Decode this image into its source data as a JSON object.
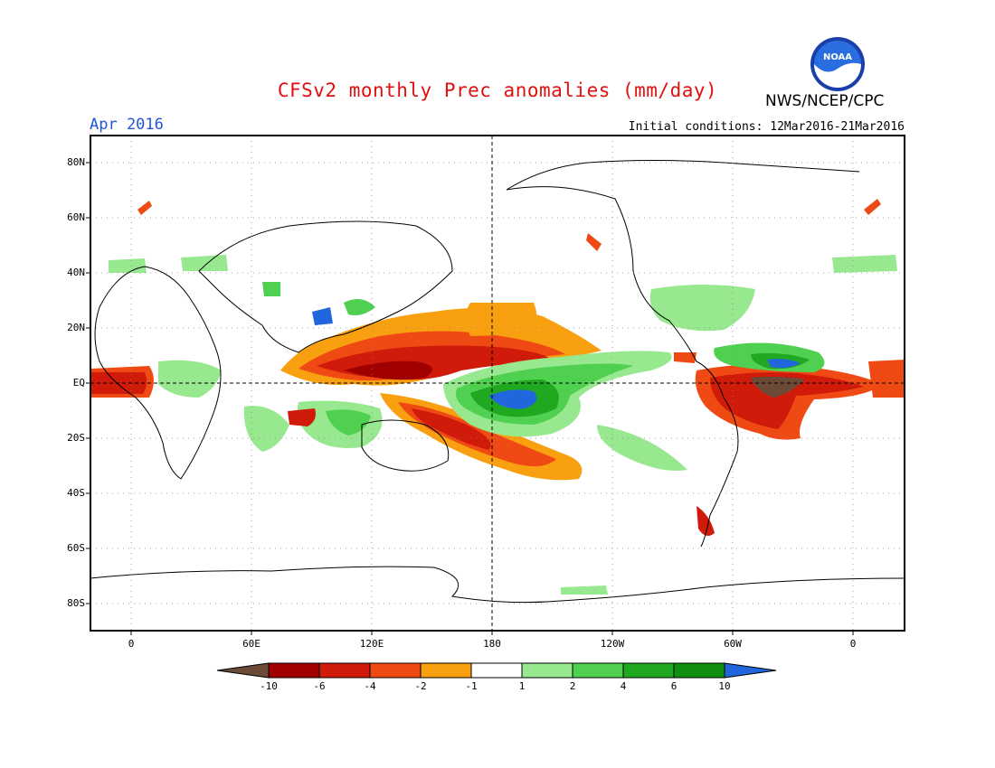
{
  "header": {
    "title": "CFSv2 monthly Prec anomalies (mm/day)",
    "agency": "NWS/NCEP/CPC",
    "month": "Apr 2016",
    "initial_conditions": "Initial conditions: 12Mar2016-21Mar2016",
    "logo_text": "NOAA"
  },
  "axes": {
    "lat_labels": [
      "80N",
      "60N",
      "40N",
      "20N",
      "EQ",
      "20S",
      "40S",
      "60S",
      "80S"
    ],
    "lon_labels": [
      "0",
      "60E",
      "120E",
      "180",
      "120W",
      "60W",
      "0"
    ]
  },
  "colorbar": {
    "labels": [
      "-10",
      "-6",
      "-4",
      "-2",
      "-1",
      "1",
      "2",
      "4",
      "6",
      "10"
    ],
    "colors": [
      "#6b4a38",
      "#a00000",
      "#d01a0a",
      "#f04a14",
      "#f8a010",
      "#ffffff",
      "#98e890",
      "#50d050",
      "#20a820",
      "#109010",
      "#2266dd"
    ]
  }
}
